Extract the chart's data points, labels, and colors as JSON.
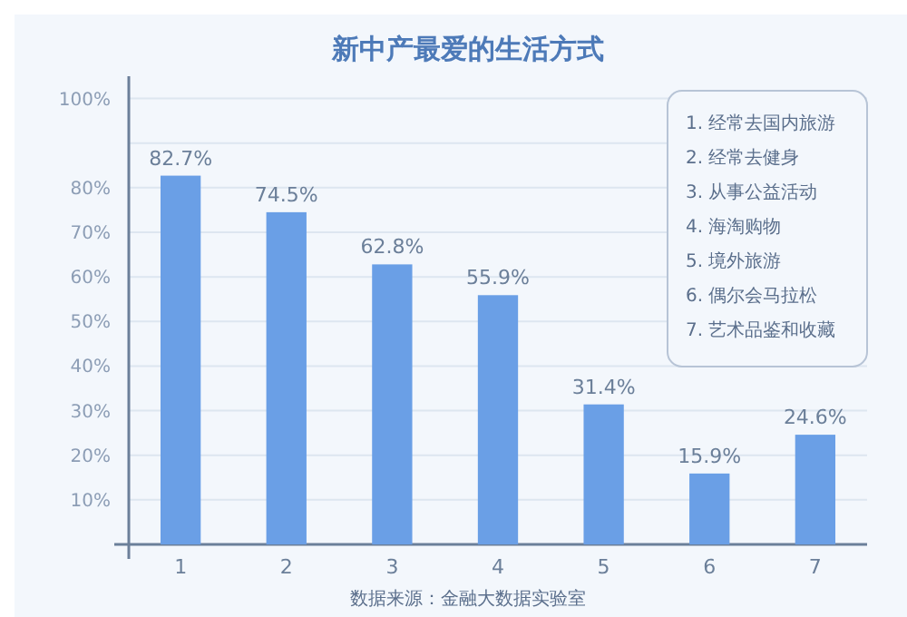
{
  "chart_data": {
    "type": "bar",
    "title": "新中产最爱的生活方式",
    "categories": [
      "1",
      "2",
      "3",
      "4",
      "5",
      "6",
      "7"
    ],
    "values": [
      82.7,
      74.5,
      62.8,
      55.9,
      31.4,
      15.9,
      24.6
    ],
    "value_labels": [
      "82.7%",
      "74.5%",
      "62.8%",
      "55.9%",
      "31.4%",
      "15.9%",
      "24.6%"
    ],
    "color": "#6a9fe6",
    "ylim": [
      0,
      105
    ],
    "yticks": [
      {
        "value": 10,
        "label": "10%"
      },
      {
        "value": 20,
        "label": "20%"
      },
      {
        "value": 30,
        "label": "30%"
      },
      {
        "value": 40,
        "label": "40%"
      },
      {
        "value": 50,
        "label": "50%"
      },
      {
        "value": 60,
        "label": "60%"
      },
      {
        "value": 70,
        "label": "70%"
      },
      {
        "value": 80,
        "label": "80%"
      },
      {
        "value": 90,
        "label": null
      },
      {
        "value": 100,
        "label": "100%"
      }
    ],
    "grid": "y",
    "annotations": [
      "1. 经常去国内旅游",
      "2. 经常去健身",
      "3. 从事公益活动",
      "4. 海淘购物",
      "5. 境外旅游",
      "6. 偶尔会马拉松",
      "7. 艺术品鉴和收藏",
      "数据来源：金融大数据实验室"
    ]
  }
}
